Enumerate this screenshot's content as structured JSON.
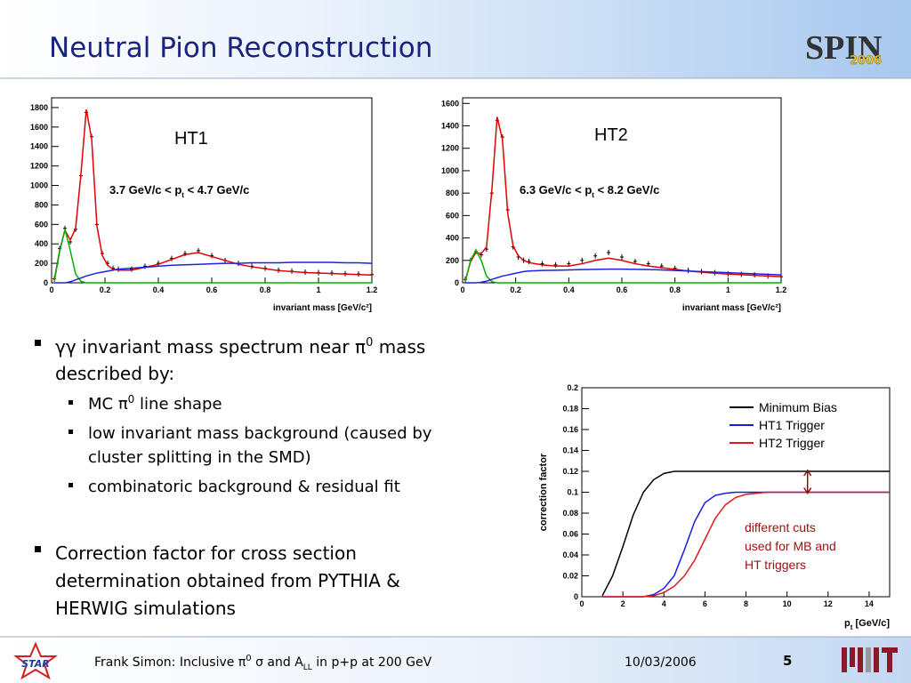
{
  "header": {
    "title": "Neutral Pion Reconstruction",
    "logo": "SPIN",
    "logo_year": "2006"
  },
  "chart_data": [
    {
      "type": "line",
      "label": "HT1",
      "annotation": {
        "pre": "3.7 GeV/c < p",
        "sub": "t",
        "post": " < 4.7 GeV/c"
      },
      "x_label": "invariant mass [GeV/c²]",
      "x": [
        0.01,
        0.03,
        0.05,
        0.07,
        0.09,
        0.11,
        0.13,
        0.15,
        0.17,
        0.19,
        0.21,
        0.23,
        0.25,
        0.3,
        0.35,
        0.4,
        0.45,
        0.5,
        0.55,
        0.6,
        0.65,
        0.7,
        0.75,
        0.8,
        0.85,
        0.9,
        0.95,
        1.0,
        1.05,
        1.1,
        1.15,
        1.2
      ],
      "series": [
        {
          "color": "#000000",
          "marker": "cross",
          "values": [
            40,
            350,
            560,
            420,
            550,
            1100,
            1750,
            1500,
            600,
            300,
            200,
            150,
            140,
            140,
            170,
            200,
            250,
            300,
            330,
            280,
            230,
            200,
            170,
            150,
            130,
            120,
            110,
            105,
            100,
            95,
            90,
            85
          ]
        },
        {
          "color": "#e00000",
          "values": [
            30,
            330,
            540,
            440,
            560,
            1120,
            1780,
            1480,
            580,
            280,
            180,
            140,
            130,
            130,
            160,
            190,
            240,
            290,
            310,
            270,
            230,
            190,
            165,
            145,
            125,
            115,
            105,
            100,
            95,
            90,
            85,
            80
          ]
        },
        {
          "color": "#00b000",
          "values": [
            10,
            320,
            550,
            330,
            90,
            15,
            0,
            0,
            0,
            0,
            0,
            0,
            0,
            0,
            0,
            0,
            0,
            0,
            0,
            0,
            0,
            0,
            0,
            0,
            0,
            0,
            0,
            0,
            0,
            0,
            0,
            0
          ]
        },
        {
          "color": "#2020e0",
          "values": [
            0,
            0,
            0,
            10,
            30,
            50,
            70,
            85,
            100,
            110,
            120,
            130,
            140,
            150,
            160,
            170,
            180,
            185,
            190,
            195,
            200,
            200,
            205,
            205,
            205,
            210,
            210,
            210,
            210,
            205,
            205,
            200
          ]
        }
      ],
      "xlim": [
        0,
        1.2
      ],
      "xticks": [
        0,
        0.2,
        0.4,
        0.6,
        0.8,
        1,
        1.2
      ],
      "ylim": [
        0,
        1900
      ],
      "yticks": [
        0,
        200,
        400,
        600,
        800,
        1000,
        1200,
        1400,
        1600,
        1800
      ]
    },
    {
      "type": "line",
      "label": "HT2",
      "annotation": {
        "pre": "6.3 GeV/c < p",
        "sub": "t",
        "post": " < 8.2 GeV/c"
      },
      "x_label": "invariant mass [GeV/c²]",
      "x": [
        0.01,
        0.03,
        0.05,
        0.07,
        0.09,
        0.11,
        0.13,
        0.15,
        0.17,
        0.19,
        0.21,
        0.23,
        0.25,
        0.3,
        0.35,
        0.4,
        0.45,
        0.5,
        0.55,
        0.6,
        0.65,
        0.7,
        0.75,
        0.8,
        0.85,
        0.9,
        0.95,
        1.0,
        1.05,
        1.1,
        1.15,
        1.2
      ],
      "series": [
        {
          "color": "#000000",
          "marker": "cross",
          "values": [
            30,
            200,
            280,
            250,
            300,
            800,
            1450,
            1300,
            650,
            320,
            230,
            200,
            190,
            170,
            160,
            170,
            200,
            240,
            270,
            230,
            190,
            170,
            150,
            130,
            110,
            100,
            90,
            80,
            75,
            70,
            60,
            55
          ]
        },
        {
          "color": "#e00000",
          "values": [
            20,
            190,
            270,
            260,
            320,
            820,
            1480,
            1280,
            620,
            330,
            240,
            200,
            180,
            160,
            150,
            150,
            170,
            200,
            220,
            200,
            170,
            150,
            135,
            120,
            105,
            95,
            85,
            78,
            72,
            66,
            60,
            55
          ]
        },
        {
          "color": "#00b000",
          "values": [
            5,
            200,
            290,
            200,
            60,
            10,
            0,
            0,
            0,
            0,
            0,
            0,
            0,
            0,
            0,
            0,
            0,
            0,
            0,
            0,
            0,
            0,
            0,
            0,
            0,
            0,
            0,
            0,
            0,
            0,
            0,
            0
          ]
        },
        {
          "color": "#2020e0",
          "values": [
            0,
            0,
            0,
            5,
            15,
            30,
            45,
            60,
            70,
            80,
            90,
            100,
            105,
            110,
            112,
            115,
            118,
            120,
            122,
            122,
            120,
            118,
            115,
            110,
            105,
            100,
            95,
            90,
            85,
            80,
            75,
            70
          ]
        }
      ],
      "xlim": [
        0,
        1.2
      ],
      "xticks": [
        0,
        0.2,
        0.4,
        0.6,
        0.8,
        1,
        1.2
      ],
      "ylim": [
        0,
        1650
      ],
      "yticks": [
        0,
        200,
        400,
        600,
        800,
        1000,
        1200,
        1400,
        1600
      ]
    },
    {
      "type": "line",
      "y_label": "correction factor",
      "x_label": {
        "pre": "p",
        "sub": "t",
        "post": " [GeV/c]"
      },
      "annotation": [
        "different cuts",
        "used for MB and",
        "HT triggers"
      ],
      "x": [
        1,
        1.5,
        2,
        2.5,
        3,
        3.5,
        4,
        4.5,
        5,
        5.5,
        6,
        6.5,
        7,
        7.5,
        8,
        9,
        10,
        11,
        12,
        13,
        14,
        15
      ],
      "series": [
        {
          "name": "Minimum Bias",
          "color": "#000000",
          "values": [
            0.001,
            0.02,
            0.048,
            0.078,
            0.1,
            0.112,
            0.118,
            0.12,
            0.12,
            0.12,
            0.12,
            0.12,
            0.12,
            0.12,
            0.12,
            0.12,
            0.12,
            0.12,
            0.12,
            0.12,
            0.12,
            0.12
          ]
        },
        {
          "name": "HT1 Trigger",
          "color": "#1a1ae0",
          "values": [
            0,
            0,
            0,
            0,
            0,
            0.002,
            0.008,
            0.02,
            0.045,
            0.072,
            0.09,
            0.097,
            0.099,
            0.1,
            0.1,
            0.1,
            0.1,
            0.1,
            0.1,
            0.1,
            0.1,
            0.1
          ]
        },
        {
          "name": "HT2 Trigger",
          "color": "#e01a1a",
          "values": [
            0,
            0,
            0,
            0,
            0,
            0.001,
            0.004,
            0.01,
            0.02,
            0.035,
            0.055,
            0.075,
            0.088,
            0.095,
            0.098,
            0.1,
            0.1,
            0.1,
            0.1,
            0.1,
            0.1,
            0.1
          ]
        }
      ],
      "xlim": [
        0,
        15
      ],
      "xticks": [
        0,
        2,
        4,
        6,
        8,
        10,
        12,
        14
      ],
      "ylim": [
        0,
        0.2
      ],
      "yticks": [
        0,
        0.02,
        0.04,
        0.06,
        0.08,
        0.1,
        0.12,
        0.14,
        0.16,
        0.18,
        0.2
      ]
    }
  ],
  "bullets": [
    {
      "pre": "γγ invariant mass spectrum near π",
      "sup": "0",
      "post": " mass",
      "line2": "described by:",
      "sub_bullets": [
        {
          "pre": "MC π",
          "sup": "0",
          "post": " line shape"
        },
        {
          "text": "low invariant mass background (caused by",
          "line2": "cluster splitting in the SMD)"
        },
        {
          "text": "combinatoric background & residual fit"
        }
      ]
    },
    {
      "lines": [
        "Correction factor for cross section",
        "determination obtained from PYTHIA &",
        "HERWIG simulations"
      ]
    }
  ],
  "footer": {
    "pre": "Frank Simon: Inclusive π",
    "sup": "0",
    "mid": " σ and A",
    "sub": "LL",
    "post": " in p+p at 200 GeV",
    "date": "10/03/2006",
    "page": "5",
    "logo": "STAR"
  }
}
